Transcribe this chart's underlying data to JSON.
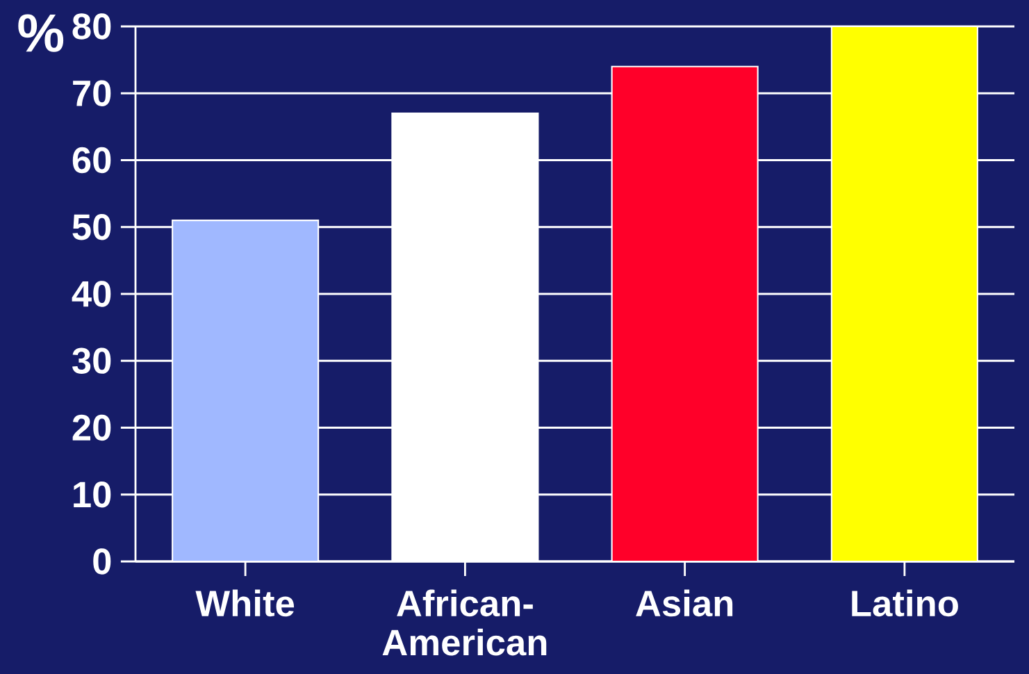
{
  "chart_data": {
    "type": "bar",
    "ylabel": "%",
    "categories": [
      "White",
      "African-American",
      "Asian",
      "Latino"
    ],
    "values": [
      51,
      67,
      74,
      80
    ],
    "colors": [
      "#a0b8ff",
      "#ffffff",
      "#ff0029",
      "#ffff00"
    ],
    "ylim": [
      0,
      80
    ],
    "yticks": [
      0,
      10,
      20,
      30,
      40,
      50,
      60,
      70,
      80
    ],
    "grid": "y"
  }
}
